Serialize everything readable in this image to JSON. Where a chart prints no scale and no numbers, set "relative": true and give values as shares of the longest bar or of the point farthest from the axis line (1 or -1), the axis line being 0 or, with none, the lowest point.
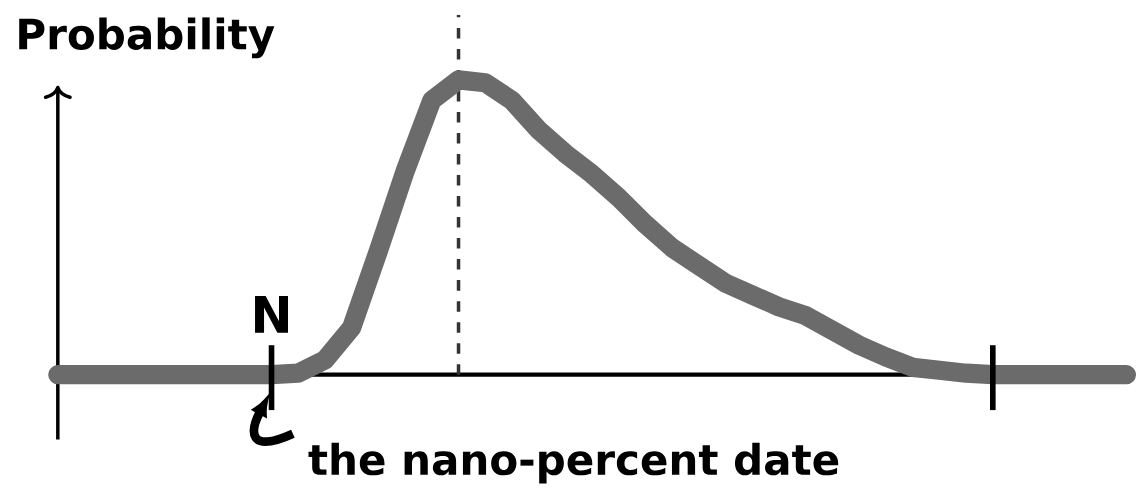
{
  "chart_data": {
    "type": "line",
    "relative": true,
    "ylabel": "Probability",
    "categories": [
      null,
      null,
      null,
      null,
      null,
      null,
      null,
      null,
      null,
      null,
      null,
      null,
      null,
      null,
      null,
      null,
      null,
      null,
      null,
      null,
      null,
      null,
      null,
      null,
      null,
      null,
      null,
      null,
      null,
      null,
      null,
      null,
      null,
      null,
      null,
      null,
      null,
      null,
      null,
      null,
      null
    ],
    "series": [
      {
        "color": "#6b6b6b",
        "values": [
          0,
          0,
          0,
          0,
          0,
          0,
          0,
          0,
          0,
          0.005,
          0.05,
          0.16,
          0.42,
          0.69,
          0.93,
          1,
          0.99,
          0.93,
          0.83,
          0.75,
          0.68,
          0.6,
          0.51,
          0.43,
          0.37,
          0.31,
          0.27,
          0.23,
          0.2,
          0.15,
          0.1,
          0.06,
          0.025,
          0.015,
          0.005,
          0,
          0,
          0,
          0,
          0,
          0
        ]
      }
    ],
    "annotations": [
      "N",
      "the nano-percent date"
    ],
    "marker": "none",
    "line_style": "solid"
  }
}
